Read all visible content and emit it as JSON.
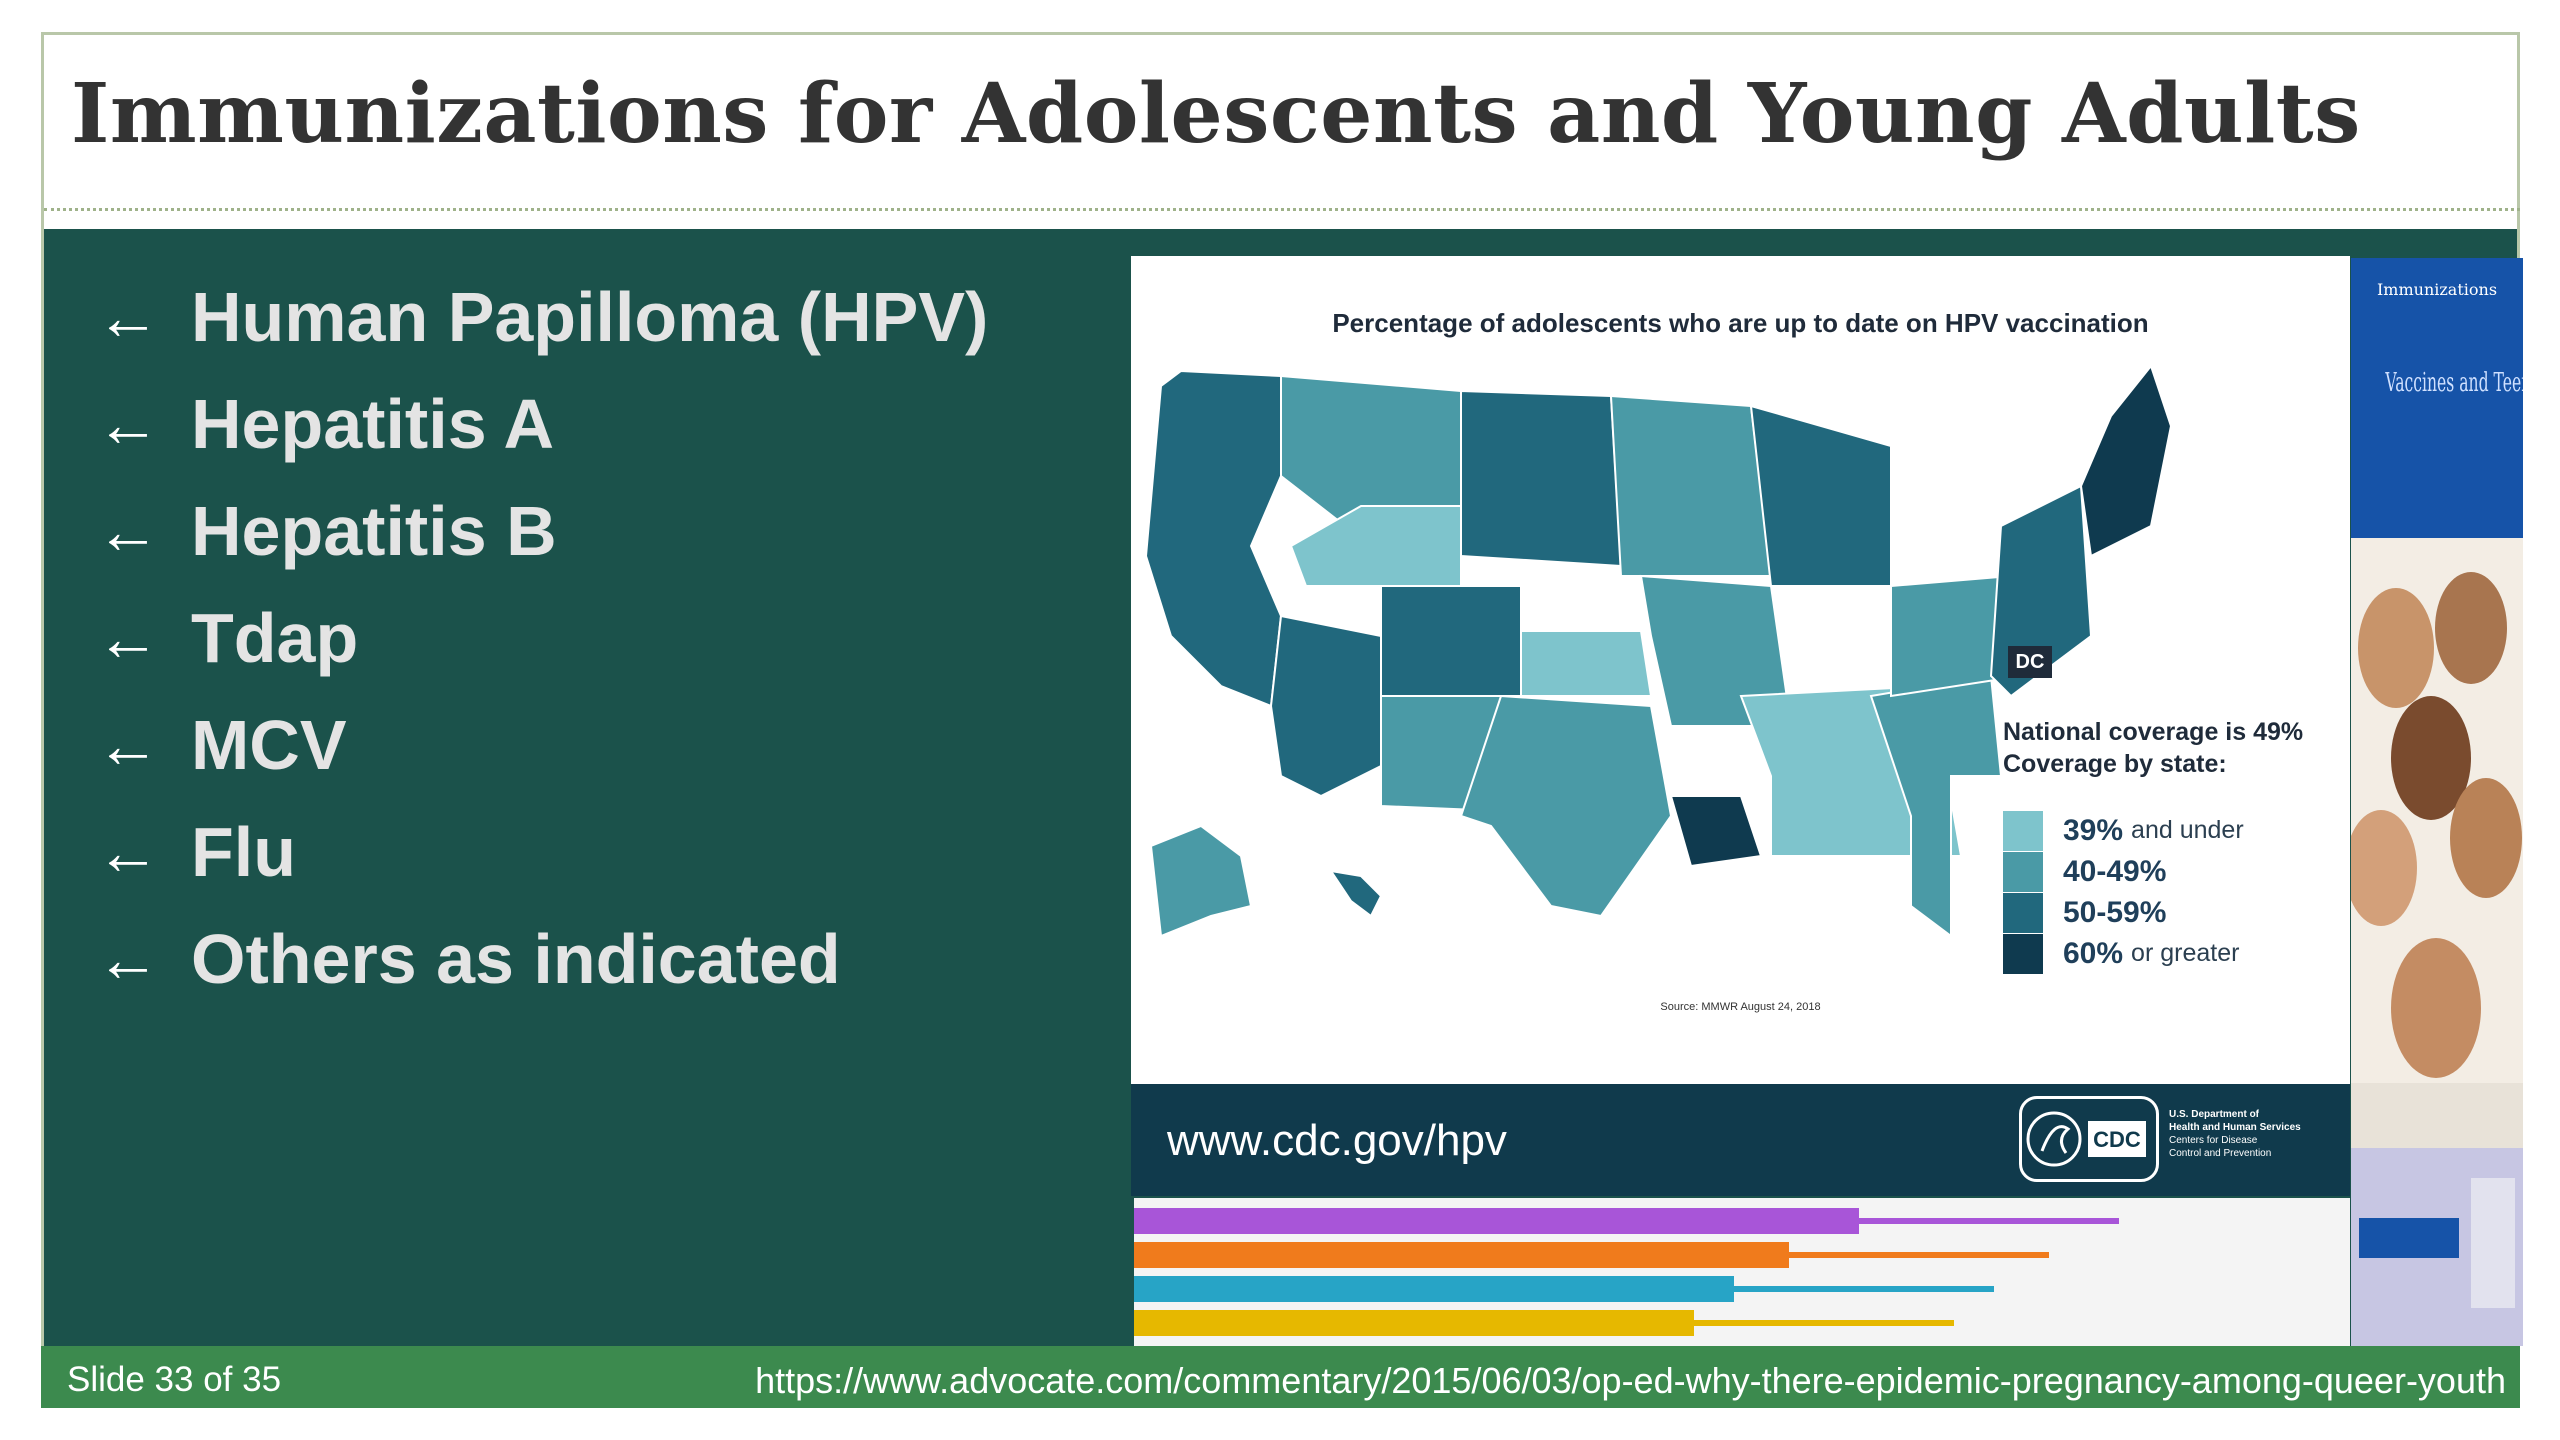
{
  "slide": {
    "title": "Immunizations for Adolescents and Young Adults",
    "bullets": [
      {
        "icon": "left-arrow-icon",
        "text": "Human Papilloma (HPV)"
      },
      {
        "icon": "left-arrow-icon",
        "text": "Hepatitis A"
      },
      {
        "icon": "left-arrow-icon",
        "text": "Hepatitis B"
      },
      {
        "icon": "left-arrow-icon",
        "text": "Tdap"
      },
      {
        "icon": "left-arrow-icon",
        "text": "MCV"
      },
      {
        "icon": "left-arrow-icon",
        "text": "Flu"
      },
      {
        "icon": "left-arrow-icon",
        "text": "Others as indicated"
      }
    ],
    "bullet_glyph": "←"
  },
  "hpv_image": {
    "title": "Percentage of adolescents who are up to date on HPV vaccination",
    "dc_label": "DC",
    "national_coverage": "National coverage is 49%",
    "coverage_by_state": "Coverage by state:",
    "legend": [
      {
        "value": "39%",
        "suffix": "and under",
        "color": "#7ec4cc"
      },
      {
        "value": "40-49%",
        "suffix": "",
        "color": "#4a9aa6"
      },
      {
        "value": "50-59%",
        "suffix": "",
        "color": "#21687d"
      },
      {
        "value": "60%",
        "suffix": "or greater",
        "color": "#0f3a4f"
      }
    ],
    "source": "Source: MMWR August 24, 2018",
    "url": "www.cdc.gov/hpv",
    "cdc_logo": "CDC",
    "hhs_lines": [
      "U.S. Department of",
      "Health and Human Services",
      "Centers for Disease",
      "Control and Prevention"
    ],
    "stripe_colors": [
      "#a855d8",
      "#f07b1c",
      "#27a4c6",
      "#e6b800"
    ]
  },
  "poster": {
    "title": "Immunizations",
    "subtitle": "Vaccines and Teens"
  },
  "footer": {
    "slide_number": "Slide 33 of 35",
    "url": "https://www.advocate.com/commentary/2015/06/03/op-ed-why-there-epidemic-pregnancy-among-queer-youth"
  },
  "colors": {
    "content_bg": "#1b524b",
    "footer_bg": "#3c8a4e",
    "title_text": "#333333",
    "bullet_text": "#e4e4e4"
  }
}
